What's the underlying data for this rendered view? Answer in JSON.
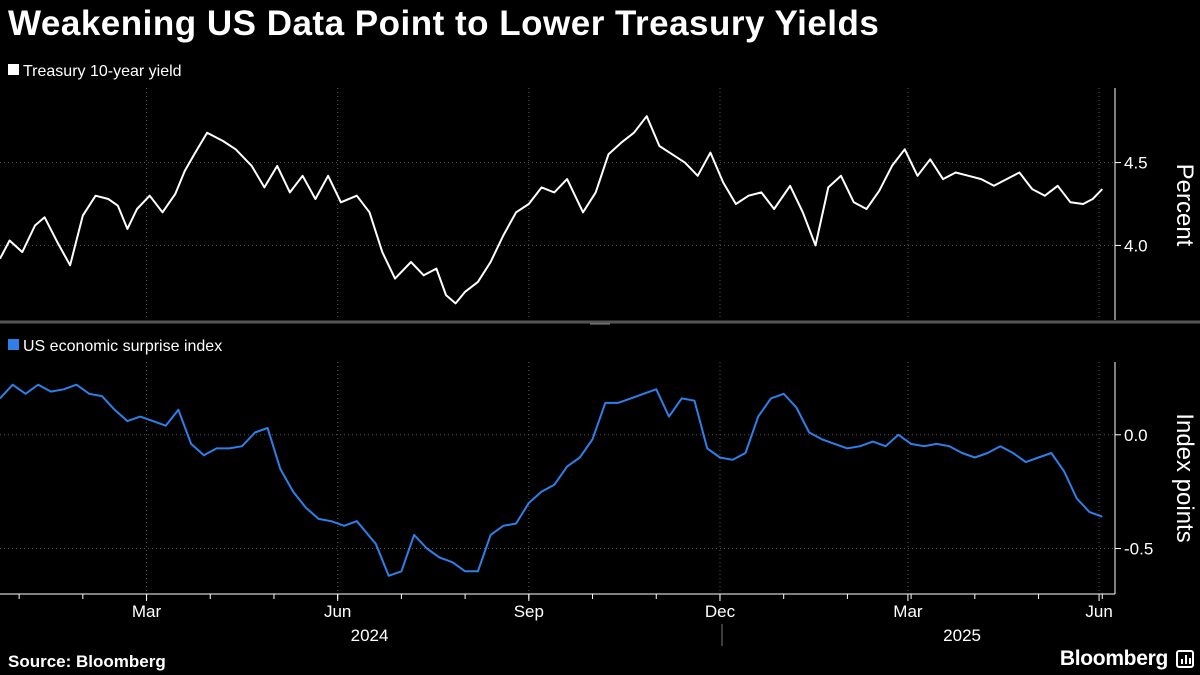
{
  "title": "Weakening US Data Point to Lower Treasury Yields",
  "source": "Source: Bloomberg",
  "brand": "Bloomberg",
  "brand_icon": "bloomberg-chart-icon",
  "colors": {
    "background": "#000000",
    "yield_line": "#ffffff",
    "surprise_line": "#2f7fe8",
    "grid": "#555555"
  },
  "chart_data": [
    {
      "type": "line",
      "title": "Treasury 10-year yield",
      "ylabel": "Percent",
      "ylim": [
        3.55,
        4.95
      ],
      "yticks": [
        {
          "value": 4.0,
          "label": "4.0"
        },
        {
          "value": 4.5,
          "label": "4.5"
        }
      ],
      "x_range": [
        0,
        17.5
      ],
      "series": [
        {
          "name": "Treasury 10-year yield",
          "x": [
            0,
            0.15,
            0.35,
            0.55,
            0.7,
            0.9,
            1.1,
            1.3,
            1.5,
            1.7,
            1.85,
            2.0,
            2.15,
            2.35,
            2.55,
            2.75,
            2.9,
            3.05,
            3.25,
            3.5,
            3.7,
            3.95,
            4.15,
            4.35,
            4.55,
            4.75,
            4.95,
            5.15,
            5.35,
            5.6,
            5.8,
            6.0,
            6.2,
            6.45,
            6.65,
            6.85,
            7.0,
            7.15,
            7.3,
            7.5,
            7.7,
            7.9,
            8.1,
            8.3,
            8.5,
            8.7,
            8.9,
            9.15,
            9.35,
            9.55,
            9.75,
            9.95,
            10.15,
            10.35,
            10.55,
            10.75,
            10.95,
            11.15,
            11.35,
            11.55,
            11.75,
            11.95,
            12.15,
            12.4,
            12.6,
            12.8,
            13.0,
            13.2,
            13.4,
            13.6,
            13.8,
            14.0,
            14.2,
            14.4,
            14.6,
            14.8,
            15.0,
            15.2,
            15.4,
            15.6,
            15.8,
            16.0,
            16.2,
            16.4,
            16.6,
            16.8,
            17.0,
            17.15,
            17.3
          ],
          "values": [
            3.92,
            4.03,
            3.96,
            4.12,
            4.17,
            4.02,
            3.88,
            4.18,
            4.3,
            4.28,
            4.24,
            4.1,
            4.22,
            4.3,
            4.2,
            4.31,
            4.45,
            4.55,
            4.68,
            4.63,
            4.58,
            4.48,
            4.35,
            4.48,
            4.32,
            4.42,
            4.28,
            4.42,
            4.26,
            4.3,
            4.2,
            3.96,
            3.8,
            3.9,
            3.82,
            3.86,
            3.7,
            3.65,
            3.72,
            3.78,
            3.9,
            4.06,
            4.2,
            4.25,
            4.35,
            4.32,
            4.4,
            4.2,
            4.32,
            4.55,
            4.62,
            4.68,
            4.78,
            4.6,
            4.55,
            4.5,
            4.42,
            4.56,
            4.38,
            4.25,
            4.3,
            4.32,
            4.22,
            4.36,
            4.2,
            4.0,
            4.35,
            4.42,
            4.26,
            4.22,
            4.33,
            4.48,
            4.58,
            4.42,
            4.52,
            4.4,
            4.44,
            4.42,
            4.4,
            4.36,
            4.4,
            4.44,
            4.34,
            4.3,
            4.36,
            4.26,
            4.25,
            4.28,
            4.34
          ]
        }
      ]
    },
    {
      "type": "line",
      "title": "US economic surprise index",
      "ylabel": "Index points",
      "ylim": [
        -0.7,
        0.32
      ],
      "yticks": [
        {
          "value": -0.5,
          "label": "-0.5"
        },
        {
          "value": 0.0,
          "label": "0.0"
        }
      ],
      "x_range": [
        0,
        17.5
      ],
      "x_tick_labels": [
        {
          "x": 2.3,
          "label": "Mar"
        },
        {
          "x": 5.3,
          "label": "Jun"
        },
        {
          "x": 8.3,
          "label": "Sep"
        },
        {
          "x": 11.3,
          "label": "Dec"
        },
        {
          "x": 14.25,
          "label": "Mar"
        },
        {
          "x": 17.25,
          "label": "Jun"
        }
      ],
      "year_labels": [
        {
          "x": 5.8,
          "label": "2024"
        },
        {
          "x": 15.1,
          "label": "2025"
        }
      ],
      "series": [
        {
          "name": "US economic surprise index",
          "x": [
            0,
            0.2,
            0.4,
            0.6,
            0.8,
            1.0,
            1.2,
            1.4,
            1.6,
            1.8,
            2.0,
            2.2,
            2.4,
            2.6,
            2.8,
            3.0,
            3.2,
            3.4,
            3.6,
            3.8,
            4.0,
            4.2,
            4.4,
            4.6,
            4.8,
            5.0,
            5.2,
            5.4,
            5.6,
            5.9,
            6.1,
            6.3,
            6.5,
            6.7,
            6.9,
            7.1,
            7.3,
            7.5,
            7.7,
            7.9,
            8.1,
            8.3,
            8.5,
            8.7,
            8.9,
            9.1,
            9.3,
            9.5,
            9.7,
            9.9,
            10.1,
            10.3,
            10.5,
            10.7,
            10.9,
            11.1,
            11.3,
            11.5,
            11.7,
            11.9,
            12.1,
            12.3,
            12.5,
            12.7,
            12.9,
            13.1,
            13.3,
            13.5,
            13.7,
            13.9,
            14.1,
            14.3,
            14.5,
            14.7,
            14.9,
            15.1,
            15.3,
            15.5,
            15.7,
            15.9,
            16.1,
            16.3,
            16.5,
            16.7,
            16.9,
            17.1,
            17.3
          ],
          "values": [
            0.16,
            0.22,
            0.18,
            0.22,
            0.19,
            0.2,
            0.22,
            0.18,
            0.17,
            0.11,
            0.06,
            0.08,
            0.06,
            0.04,
            0.11,
            -0.04,
            -0.09,
            -0.06,
            -0.06,
            -0.05,
            0.01,
            0.03,
            -0.15,
            -0.25,
            -0.32,
            -0.37,
            -0.38,
            -0.4,
            -0.38,
            -0.48,
            -0.62,
            -0.6,
            -0.44,
            -0.5,
            -0.54,
            -0.56,
            -0.6,
            -0.6,
            -0.44,
            -0.4,
            -0.39,
            -0.3,
            -0.25,
            -0.22,
            -0.14,
            -0.1,
            -0.02,
            0.14,
            0.14,
            0.16,
            0.18,
            0.2,
            0.08,
            0.16,
            0.15,
            -0.06,
            -0.1,
            -0.11,
            -0.08,
            0.08,
            0.16,
            0.18,
            0.12,
            0.01,
            -0.02,
            -0.04,
            -0.06,
            -0.05,
            -0.03,
            -0.05,
            0.0,
            -0.04,
            -0.05,
            -0.04,
            -0.05,
            -0.08,
            -0.1,
            -0.08,
            -0.05,
            -0.08,
            -0.12,
            -0.1,
            -0.08,
            -0.16,
            -0.28,
            -0.34,
            -0.36
          ]
        }
      ]
    }
  ]
}
